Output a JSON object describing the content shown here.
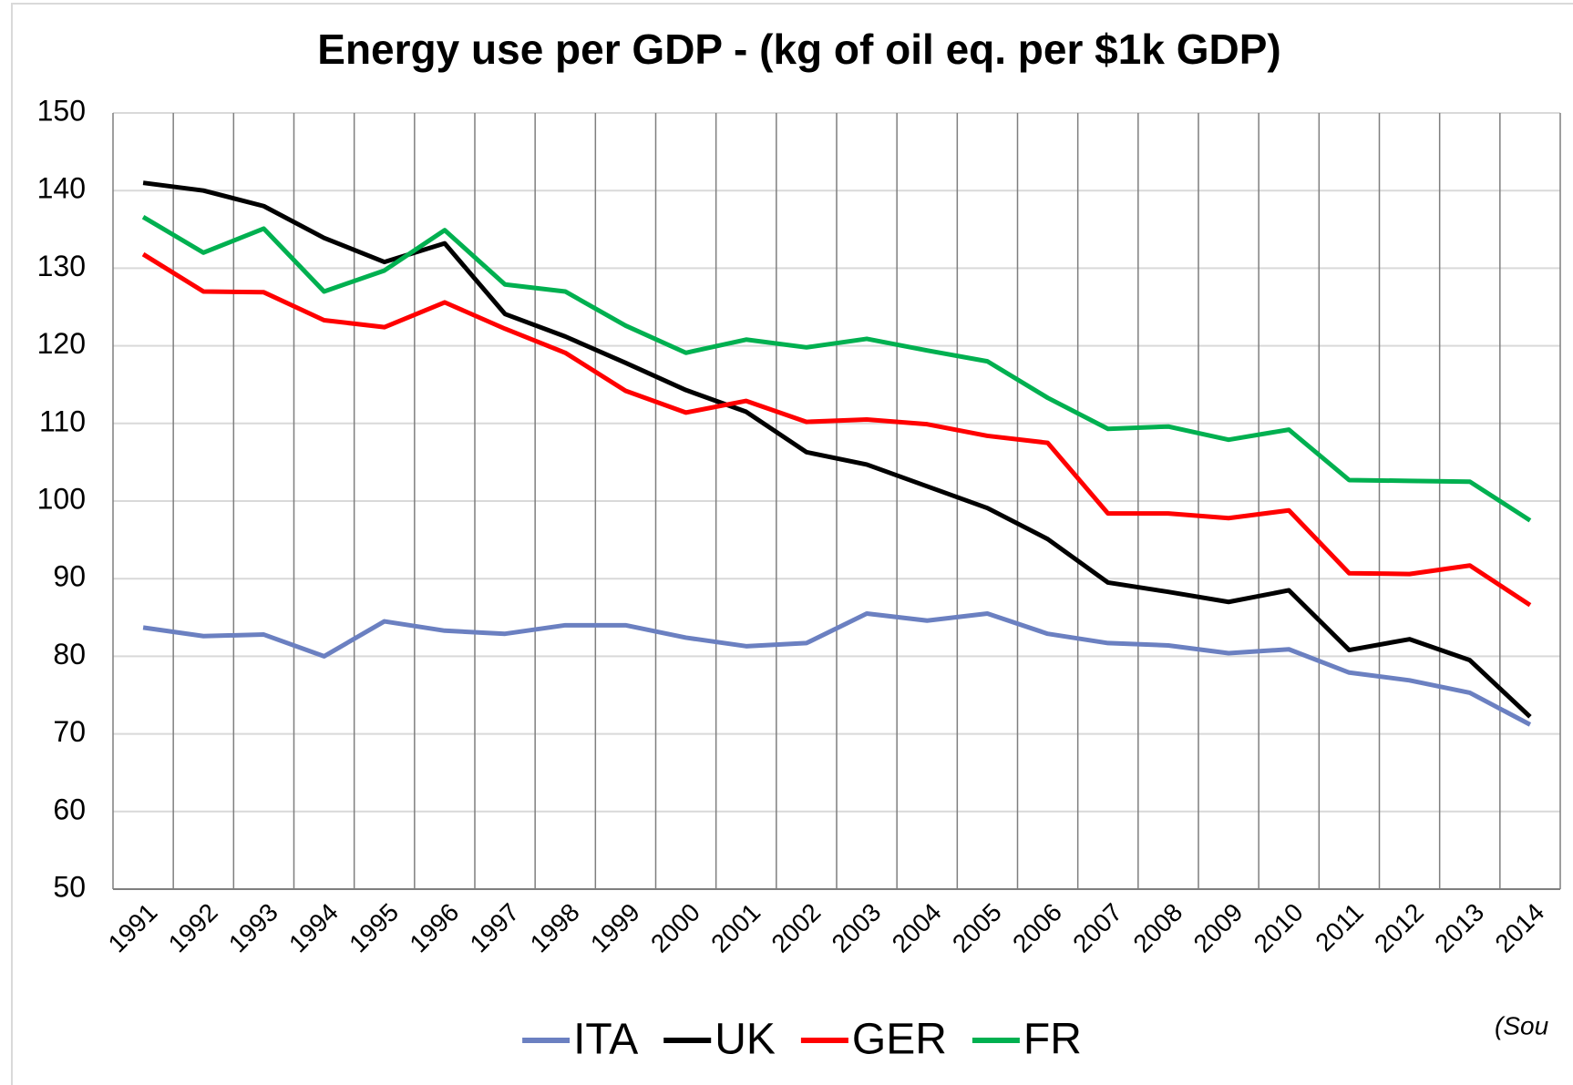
{
  "chart_data": {
    "type": "line",
    "title": "Energy use per GDP - (kg of oil eq. per $1k GDP)",
    "annotation": "(Sou",
    "categories": [
      "1991",
      "1992",
      "1993",
      "1994",
      "1995",
      "1996",
      "1997",
      "1998",
      "1999",
      "2000",
      "2001",
      "2002",
      "2003",
      "2004",
      "2005",
      "2006",
      "2007",
      "2008",
      "2009",
      "2010",
      "2011",
      "2012",
      "2013",
      "2014"
    ],
    "series": [
      {
        "name": "ITA",
        "color": "#6b80c1",
        "values": [
          83.7,
          82.6,
          82.8,
          80,
          84.5,
          83.3,
          82.9,
          84,
          84,
          82.4,
          81.3,
          81.7,
          85.5,
          84.6,
          85.5,
          82.9,
          81.7,
          81.4,
          80.4,
          80.9,
          77.9,
          76.9,
          75.3,
          71.2
        ]
      },
      {
        "name": "UK",
        "color": "#000000",
        "values": [
          141,
          140,
          138,
          133.9,
          130.8,
          133.2,
          124.1,
          121.2,
          117.8,
          114.3,
          111.5,
          106.3,
          104.7,
          101.9,
          99.1,
          95.1,
          89.5,
          88.3,
          87,
          88.5,
          80.8,
          82.2,
          79.5,
          72.2
        ]
      },
      {
        "name": "GER",
        "color": "#ff0000",
        "values": [
          131.8,
          127,
          126.9,
          123.3,
          122.4,
          125.6,
          122.2,
          119.1,
          114.2,
          111.4,
          112.9,
          110.2,
          110.5,
          109.9,
          108.4,
          107.5,
          98.4,
          98.4,
          97.8,
          98.8,
          90.7,
          90.6,
          91.7,
          86.6
        ]
      },
      {
        "name": "FR",
        "color": "#00b050",
        "values": [
          136.6,
          132,
          135.1,
          127,
          129.7,
          134.9,
          127.9,
          127,
          122.6,
          119.1,
          120.8,
          119.8,
          120.9,
          119.4,
          118,
          113.3,
          109.3,
          109.6,
          107.9,
          109.2,
          102.7,
          102.6,
          102.5,
          97.5
        ]
      }
    ],
    "ylim": [
      50,
      150
    ],
    "yticks": [
      50,
      60,
      70,
      80,
      90,
      100,
      110,
      120,
      130,
      140,
      150
    ],
    "grid": true,
    "legend": "bottom"
  }
}
